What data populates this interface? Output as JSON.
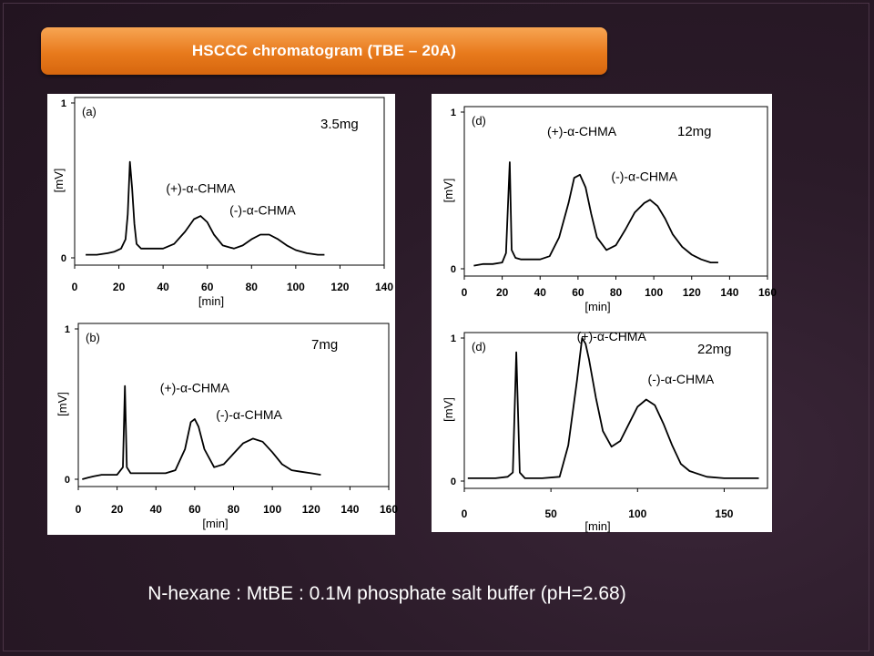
{
  "title": "HSCCC chromatogram (TBE – 20A)",
  "caption": "N-hexane : MtBE : 0.1M phosphate salt buffer (pH=2.68)",
  "colors": {
    "background": "#2a1a28",
    "title_bar": "#e87a1c",
    "title_text": "#ffffff",
    "trace": "#000000"
  },
  "chart_data": [
    {
      "type": "line",
      "panel_label": "(a)",
      "load": "3.5mg",
      "xlabel": "[min]",
      "ylabel": "[mV]",
      "xlim": [
        0,
        140
      ],
      "ylim": [
        0,
        1
      ],
      "xticks": [
        "0",
        "20",
        "40",
        "60",
        "80",
        "100",
        "120",
        "140"
      ],
      "yticks": [
        "0",
        "1"
      ],
      "annotations": [
        {
          "text": "(+)-α-CHMA",
          "x": 57,
          "y": 0.42
        },
        {
          "text": "(-)-α-CHMA",
          "x": 85,
          "y": 0.28
        }
      ],
      "x": [
        5,
        10,
        15,
        18,
        21,
        23,
        24,
        25,
        26,
        27,
        28,
        30,
        35,
        40,
        45,
        50,
        54,
        57,
        60,
        63,
        67,
        72,
        76,
        80,
        84,
        88,
        92,
        96,
        100,
        105,
        110,
        113
      ],
      "y": [
        0.02,
        0.02,
        0.03,
        0.04,
        0.06,
        0.12,
        0.28,
        0.62,
        0.45,
        0.22,
        0.09,
        0.06,
        0.06,
        0.06,
        0.09,
        0.17,
        0.25,
        0.27,
        0.23,
        0.15,
        0.08,
        0.06,
        0.08,
        0.12,
        0.15,
        0.15,
        0.12,
        0.08,
        0.05,
        0.03,
        0.02,
        0.02
      ]
    },
    {
      "type": "line",
      "panel_label": "(b)",
      "load": "7mg",
      "xlabel": "[min]",
      "ylabel": "[mV]",
      "xlim": [
        0,
        160
      ],
      "ylim": [
        0,
        1
      ],
      "xticks": [
        "0",
        "20",
        "40",
        "60",
        "80",
        "100",
        "120",
        "140",
        "160"
      ],
      "yticks": [
        "0",
        "1"
      ],
      "annotations": [
        {
          "text": "(+)-α-CHMA",
          "x": 60,
          "y": 0.58
        },
        {
          "text": "(-)-α-CHMA",
          "x": 88,
          "y": 0.4
        }
      ],
      "x": [
        2,
        5,
        8,
        12,
        15,
        20,
        23,
        24,
        25,
        27,
        30,
        35,
        40,
        45,
        50,
        55,
        58,
        60,
        62,
        65,
        70,
        75,
        80,
        85,
        90,
        95,
        100,
        105,
        110,
        115,
        120,
        125
      ],
      "y": [
        0.0,
        0.01,
        0.02,
        0.03,
        0.03,
        0.03,
        0.08,
        0.62,
        0.08,
        0.04,
        0.04,
        0.04,
        0.04,
        0.04,
        0.06,
        0.2,
        0.38,
        0.4,
        0.35,
        0.2,
        0.08,
        0.1,
        0.17,
        0.24,
        0.27,
        0.25,
        0.18,
        0.1,
        0.06,
        0.05,
        0.04,
        0.03
      ]
    },
    {
      "type": "line",
      "panel_label": "(d)",
      "load": "12mg",
      "xlabel": "[min]",
      "ylabel": "[mV]",
      "xlim": [
        0,
        160
      ],
      "ylim": [
        0,
        1
      ],
      "xticks": [
        "0",
        "20",
        "40",
        "60",
        "80",
        "100",
        "120",
        "140",
        "160"
      ],
      "yticks": [
        "0",
        "1"
      ],
      "annotations": [
        {
          "text": "(+)-α-CHMA",
          "x": 62,
          "y": 0.85
        },
        {
          "text": "(-)-α-CHMA",
          "x": 95,
          "y": 0.56
        }
      ],
      "x": [
        5,
        10,
        15,
        20,
        22,
        24,
        25,
        27,
        30,
        35,
        40,
        45,
        50,
        55,
        58,
        61,
        64,
        67,
        70,
        75,
        80,
        85,
        90,
        95,
        98,
        102,
        106,
        110,
        115,
        120,
        125,
        130,
        134
      ],
      "y": [
        0.02,
        0.03,
        0.03,
        0.04,
        0.1,
        0.68,
        0.12,
        0.07,
        0.06,
        0.06,
        0.06,
        0.08,
        0.2,
        0.42,
        0.58,
        0.6,
        0.52,
        0.35,
        0.2,
        0.12,
        0.15,
        0.25,
        0.36,
        0.42,
        0.44,
        0.4,
        0.32,
        0.22,
        0.14,
        0.09,
        0.06,
        0.04,
        0.04
      ]
    },
    {
      "type": "line",
      "panel_label": "(d)",
      "load": "22mg",
      "xlabel": "[min]",
      "ylabel": "[mV]",
      "xlim": [
        0,
        175
      ],
      "ylim": [
        0,
        1
      ],
      "xticks": [
        "0",
        "50",
        "100",
        "150"
      ],
      "yticks": [
        "0",
        "1"
      ],
      "annotations": [
        {
          "text": "(+)-α-CHMA",
          "x": 85,
          "y": 0.98
        },
        {
          "text": "(-)-α-CHMA",
          "x": 125,
          "y": 0.68
        }
      ],
      "x": [
        2,
        10,
        18,
        25,
        28,
        30,
        32,
        35,
        45,
        55,
        60,
        65,
        68,
        70,
        72,
        76,
        80,
        85,
        90,
        95,
        100,
        105,
        110,
        115,
        120,
        125,
        130,
        140,
        150,
        160,
        170
      ],
      "y": [
        0.02,
        0.02,
        0.02,
        0.03,
        0.06,
        0.9,
        0.06,
        0.02,
        0.02,
        0.03,
        0.25,
        0.7,
        1.0,
        0.96,
        0.85,
        0.58,
        0.35,
        0.24,
        0.28,
        0.4,
        0.52,
        0.57,
        0.53,
        0.4,
        0.25,
        0.12,
        0.07,
        0.03,
        0.02,
        0.02,
        0.02
      ]
    }
  ]
}
